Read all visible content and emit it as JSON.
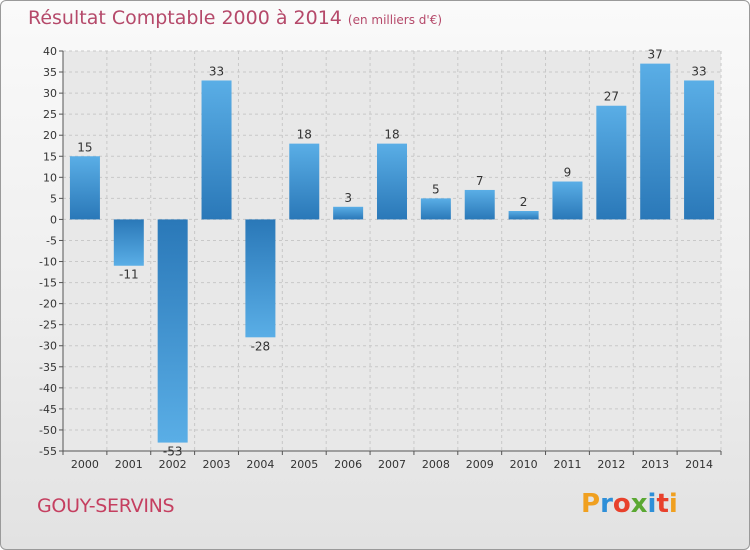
{
  "chart_data": {
    "type": "bar",
    "title": "Résultat Comptable 2000 à 2014",
    "subtitle": "(en milliers d'€)",
    "categories": [
      "2000",
      "2001",
      "2002",
      "2003",
      "2004",
      "2005",
      "2006",
      "2007",
      "2008",
      "2009",
      "2010",
      "2011",
      "2012",
      "2013",
      "2014"
    ],
    "values": [
      15,
      -11,
      -53,
      33,
      -28,
      18,
      3,
      18,
      5,
      7,
      2,
      9,
      27,
      37,
      33
    ],
    "ylim": [
      -55,
      40
    ],
    "yticks": [
      40,
      35,
      30,
      25,
      20,
      15,
      10,
      5,
      0,
      -5,
      -10,
      -15,
      -20,
      -25,
      -30,
      -35,
      -40,
      -45,
      -50,
      -55
    ],
    "grid": true,
    "xlabel": "",
    "ylabel": ""
  },
  "footer": {
    "commune": "GOUY-SERVINS",
    "brand": "Proxiti"
  },
  "colors": {
    "bar_light": "#5aaee6",
    "bar_dark": "#2a78b8",
    "title": "#b5496a",
    "grid": "#c8c8c8"
  }
}
